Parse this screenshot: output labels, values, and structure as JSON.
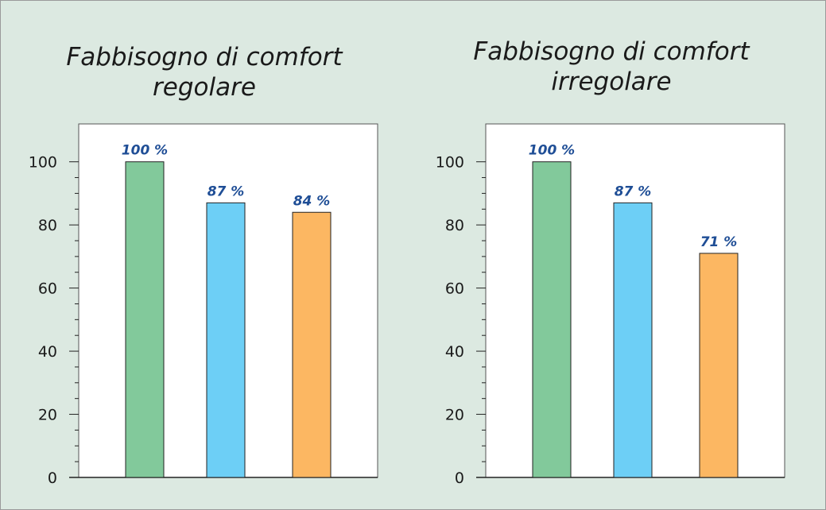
{
  "chart_data": [
    {
      "type": "bar",
      "title_lines": [
        "Fabbisogno di comfort",
        "regolare"
      ],
      "categories": [
        "",
        "",
        ""
      ],
      "values": [
        100,
        87,
        84
      ],
      "value_labels": [
        "100 %",
        "87 %",
        "84 %"
      ],
      "colors": [
        "#82c99b",
        "#6dcff6",
        "#fcb762"
      ],
      "yticks": [
        "0",
        "20",
        "40",
        "60",
        "80",
        "100"
      ],
      "ylim": [
        0,
        112
      ],
      "xlabel": "",
      "ylabel": "",
      "grid": false
    },
    {
      "type": "bar",
      "title_lines": [
        "Fabbisogno di comfort",
        "irregolare"
      ],
      "categories": [
        "",
        "",
        ""
      ],
      "values": [
        100,
        87,
        71
      ],
      "value_labels": [
        "100 %",
        "87 %",
        "71 %"
      ],
      "colors": [
        "#82c99b",
        "#6dcff6",
        "#fcb762"
      ],
      "yticks": [
        "0",
        "20",
        "40",
        "60",
        "80",
        "100"
      ],
      "ylim": [
        0,
        112
      ],
      "xlabel": "",
      "ylabel": "",
      "grid": false
    }
  ],
  "colors": {
    "background": "#dce9e1",
    "plot_area": "#ffffff",
    "value_label": "#1f4e96",
    "axis": "#222222"
  }
}
